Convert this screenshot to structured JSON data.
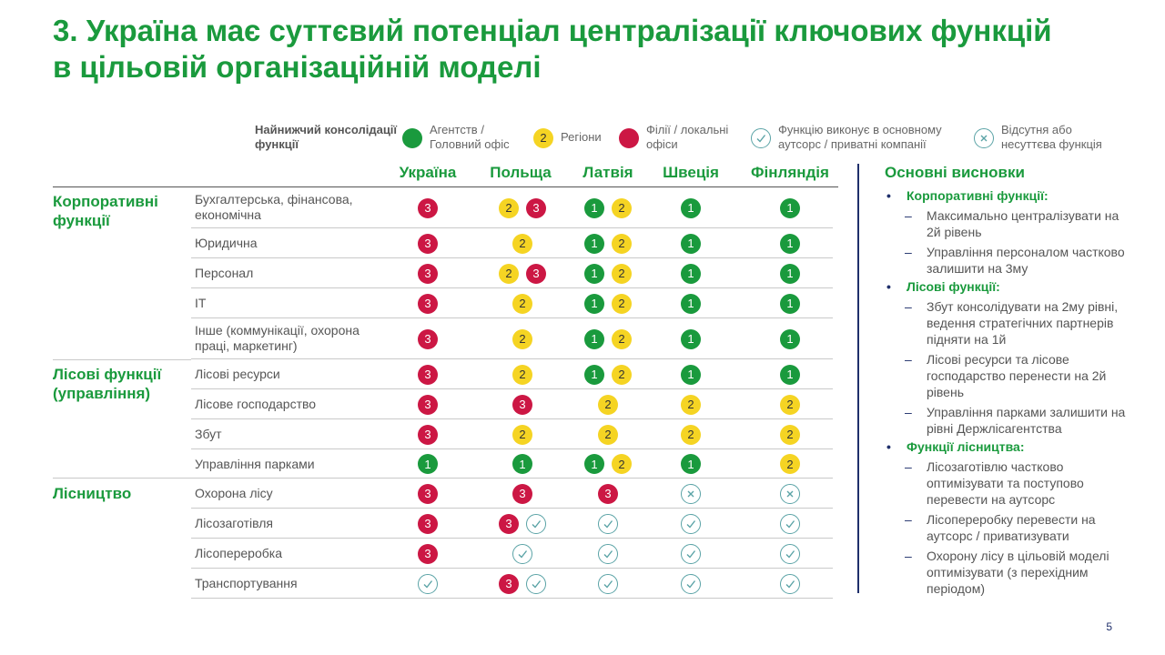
{
  "title": "3. Україна має суттєвий потенціал централізації ключових функцій в цільовій організаційній моделі",
  "legend": {
    "heading": "Найнижчий консолідації функції",
    "items": [
      {
        "type": "1",
        "label": "Агентств / Головний офіс"
      },
      {
        "type": "2",
        "label": "Регіони"
      },
      {
        "type": "3",
        "label": "Філії / локальні офіси"
      },
      {
        "type": "check",
        "label": "Функцію виконує в основному аутсорс / приватні компанії"
      },
      {
        "type": "x",
        "label": "Відсутня або несуттєва функція"
      }
    ]
  },
  "countries": [
    "Україна",
    "Польща",
    "Латвія",
    "Швеція",
    "Фінляндія"
  ],
  "groups": [
    {
      "name": "Корпоративні функції"
    },
    {
      "name": "Лісові функції (управління)"
    },
    {
      "name": "Лісництво"
    }
  ],
  "rows": [
    {
      "label": "Бухгалтерська, фінансова, економічна",
      "cells": [
        [
          "3"
        ],
        [
          "2",
          "3"
        ],
        [
          "1",
          "2"
        ],
        [
          "1"
        ],
        [
          "1"
        ]
      ]
    },
    {
      "label": "Юридична",
      "cells": [
        [
          "3"
        ],
        [
          "2"
        ],
        [
          "1",
          "2"
        ],
        [
          "1"
        ],
        [
          "1"
        ]
      ]
    },
    {
      "label": "Персонал",
      "cells": [
        [
          "3"
        ],
        [
          "2",
          "3"
        ],
        [
          "1",
          "2"
        ],
        [
          "1"
        ],
        [
          "1"
        ]
      ]
    },
    {
      "label": "ІТ",
      "cells": [
        [
          "3"
        ],
        [
          "2"
        ],
        [
          "1",
          "2"
        ],
        [
          "1"
        ],
        [
          "1"
        ]
      ]
    },
    {
      "label": "Інше (коммунікації, охорона праці, маркетинг)",
      "cells": [
        [
          "3"
        ],
        [
          "2"
        ],
        [
          "1",
          "2"
        ],
        [
          "1"
        ],
        [
          "1"
        ]
      ]
    },
    {
      "label": "Лісові ресурси",
      "cells": [
        [
          "3"
        ],
        [
          "2"
        ],
        [
          "1",
          "2"
        ],
        [
          "1"
        ],
        [
          "1"
        ]
      ]
    },
    {
      "label": "Лісове господарство",
      "cells": [
        [
          "3"
        ],
        [
          "3"
        ],
        [
          "2"
        ],
        [
          "2"
        ],
        [
          "2"
        ]
      ]
    },
    {
      "label": "Збут",
      "cells": [
        [
          "3"
        ],
        [
          "2"
        ],
        [
          "2"
        ],
        [
          "2"
        ],
        [
          "2"
        ]
      ]
    },
    {
      "label": "Управління парками",
      "cells": [
        [
          "1"
        ],
        [
          "1"
        ],
        [
          "1",
          "2"
        ],
        [
          "1"
        ],
        [
          "2"
        ]
      ]
    },
    {
      "label": "Охорона лісу",
      "cells": [
        [
          "3"
        ],
        [
          "3"
        ],
        [
          "3"
        ],
        [
          "x"
        ],
        [
          "x"
        ]
      ]
    },
    {
      "label": "Лісозаготівля",
      "cells": [
        [
          "3"
        ],
        [
          "3",
          "check"
        ],
        [
          "check"
        ],
        [
          "check"
        ],
        [
          "check"
        ]
      ]
    },
    {
      "label": "Лісопереробка",
      "cells": [
        [
          "3"
        ],
        [
          "check"
        ],
        [
          "check"
        ],
        [
          "check"
        ],
        [
          "check"
        ]
      ]
    },
    {
      "label": "Транспортування",
      "cells": [
        [
          "check"
        ],
        [
          "3",
          "check"
        ],
        [
          "check"
        ],
        [
          "check"
        ],
        [
          "check"
        ]
      ]
    }
  ],
  "conclusions": {
    "title": "Основні висновки",
    "sections": [
      {
        "heading": "Корпоративні функції:",
        "items": [
          "Максимально централізувати на 2й рівень",
          "Управління персоналом частково залишити на 3му"
        ]
      },
      {
        "heading": "Лісові функції:",
        "items": [
          "Збут консолідувати на 2му рівні, ведення стратегічних партнерів підняти на 1й",
          "Лісові ресурси та лісове господарство перенести на 2й рівень",
          "Управління парками залишити на рівні Держлісагентства"
        ]
      },
      {
        "heading": "Функції лісництва:",
        "items": [
          "Лісозаготівлю частково оптимізувати та поступово перевести на аутсорс",
          "Лісопереробку перевести на аутсорс / приватизувати",
          "Охорону лісу в цільовій моделі оптимізувати (з перехідним періодом)"
        ]
      }
    ]
  },
  "colors": {
    "green": "#1a9a3d",
    "yellow": "#f5d423",
    "red": "#cc1744",
    "navy": "#1f2f6b",
    "teal": "#5aa3a6"
  },
  "page_number": "5"
}
